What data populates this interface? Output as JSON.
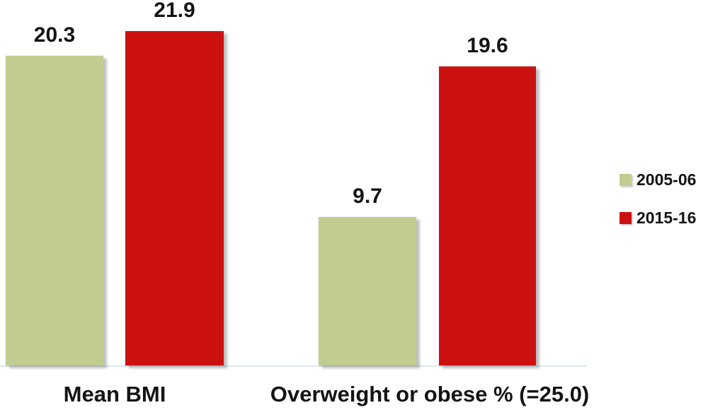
{
  "chart_data": {
    "type": "bar",
    "title": "",
    "xlabel": "",
    "ylabel": "",
    "categories": [
      "Mean BMI",
      "Overweight or obese % (=25.0)"
    ],
    "series": [
      {
        "name": "2005-06",
        "color": "#C3CC90",
        "values": [
          20.3,
          9.7
        ]
      },
      {
        "name": "2015-16",
        "color": "#CC1111",
        "values": [
          21.9,
          19.6
        ]
      }
    ],
    "data_labels": true,
    "data_label_values": [
      "20.3",
      "21.9",
      "9.7",
      "19.6"
    ],
    "ylim": [
      0,
      24
    ],
    "grid": false,
    "legend_position": "right",
    "colors": {
      "label_text": "#141414",
      "axis_line": "#DCE7ED",
      "background": "#FFFFFF"
    }
  }
}
